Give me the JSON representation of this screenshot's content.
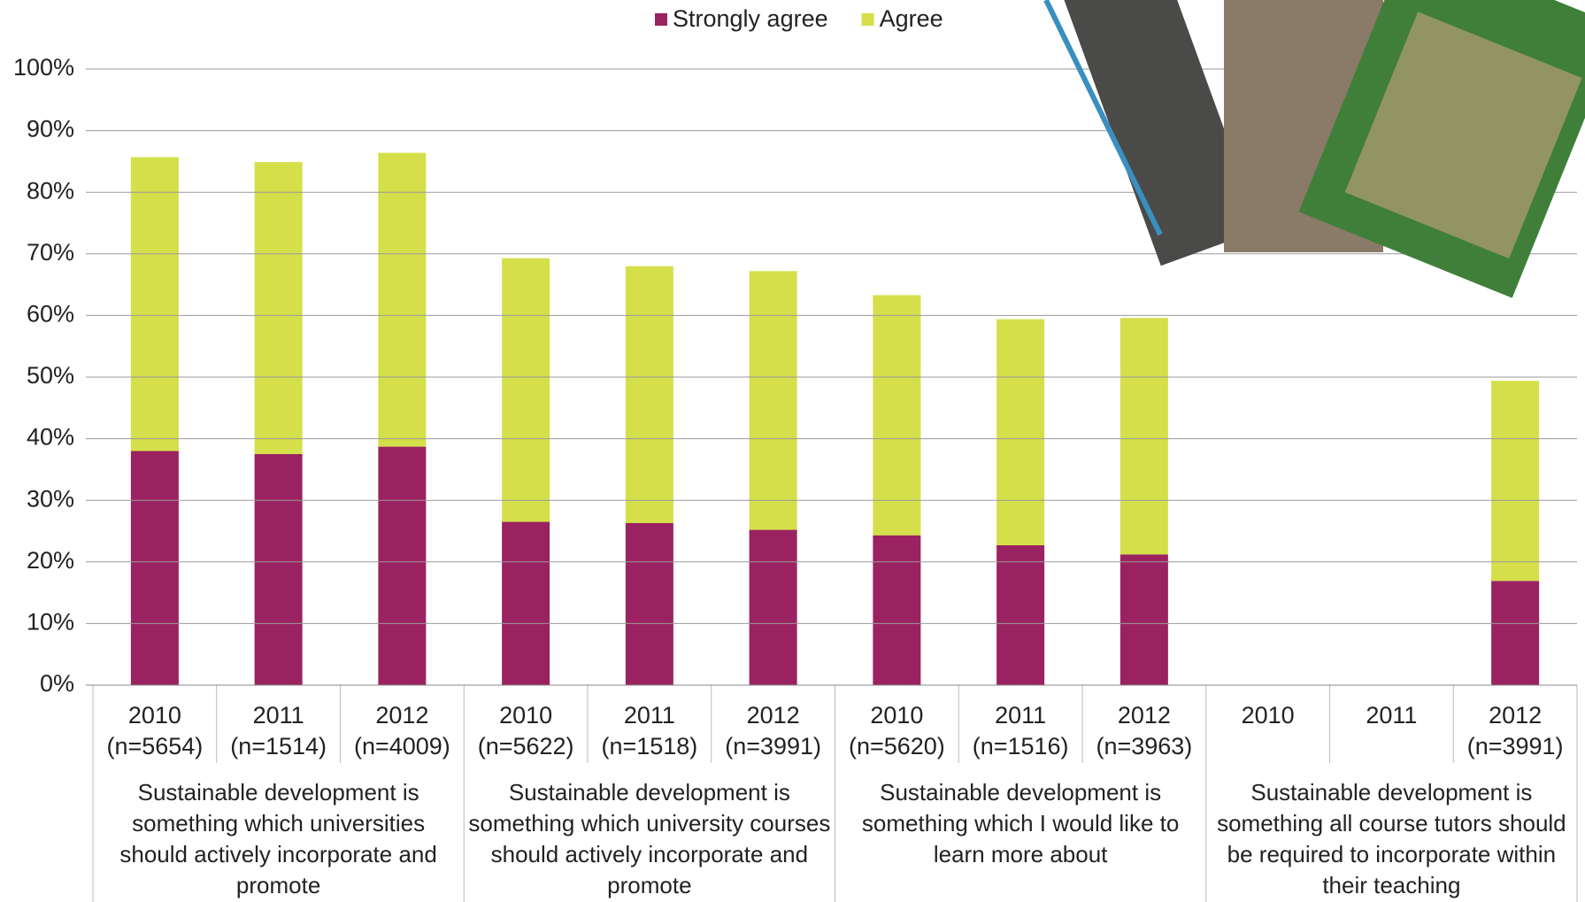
{
  "chart_data": {
    "type": "stacked_bar",
    "categories": [
      "2010",
      "2011",
      "2012",
      "2010",
      "2011",
      "2012",
      "2010",
      "2011",
      "2012",
      "2010",
      "2011",
      "2012"
    ],
    "sample_sizes": [
      "(n=5654)",
      "(n=1514)",
      "(n=4009)",
      "(n=5622)",
      "(n=1518)",
      "(n=3991)",
      "(n=5620)",
      "(n=1516)",
      "(n=3963)",
      null,
      null,
      "(n=3991)"
    ],
    "groups": [
      "Sustainable development is something which universities should actively incorporate and promote",
      "Sustainable development is something which university courses should actively incorporate and promote",
      "Sustainable development is something which I would like to learn more about",
      "Sustainable development is something all course tutors should be required to incorporate within their teaching"
    ],
    "series": [
      {
        "name": "Strongly agree",
        "color": "#9b2260",
        "values": [
          38,
          37.5,
          38.7,
          26.5,
          26.3,
          25.2,
          24.3,
          22.7,
          21.2,
          null,
          null,
          16.9
        ]
      },
      {
        "name": "Agree",
        "color": "#d4df4a",
        "values": [
          47.7,
          47.4,
          47.7,
          42.8,
          41.7,
          42,
          39,
          36.7,
          38.4,
          null,
          null,
          32.5
        ]
      }
    ],
    "ylim": [
      0,
      100
    ],
    "yticks": [
      {
        "value": 0,
        "label": "0%"
      },
      {
        "value": 10,
        "label": "10%"
      },
      {
        "value": 20,
        "label": "20%"
      },
      {
        "value": 30,
        "label": "30%"
      },
      {
        "value": 40,
        "label": "40%"
      },
      {
        "value": 50,
        "label": "50%"
      },
      {
        "value": 60,
        "label": "60%"
      },
      {
        "value": 70,
        "label": "70%"
      },
      {
        "value": 80,
        "label": "80%"
      },
      {
        "value": 90,
        "label": "90%"
      },
      {
        "value": 100,
        "label": "100%"
      }
    ],
    "grid": true,
    "legend": "top"
  }
}
